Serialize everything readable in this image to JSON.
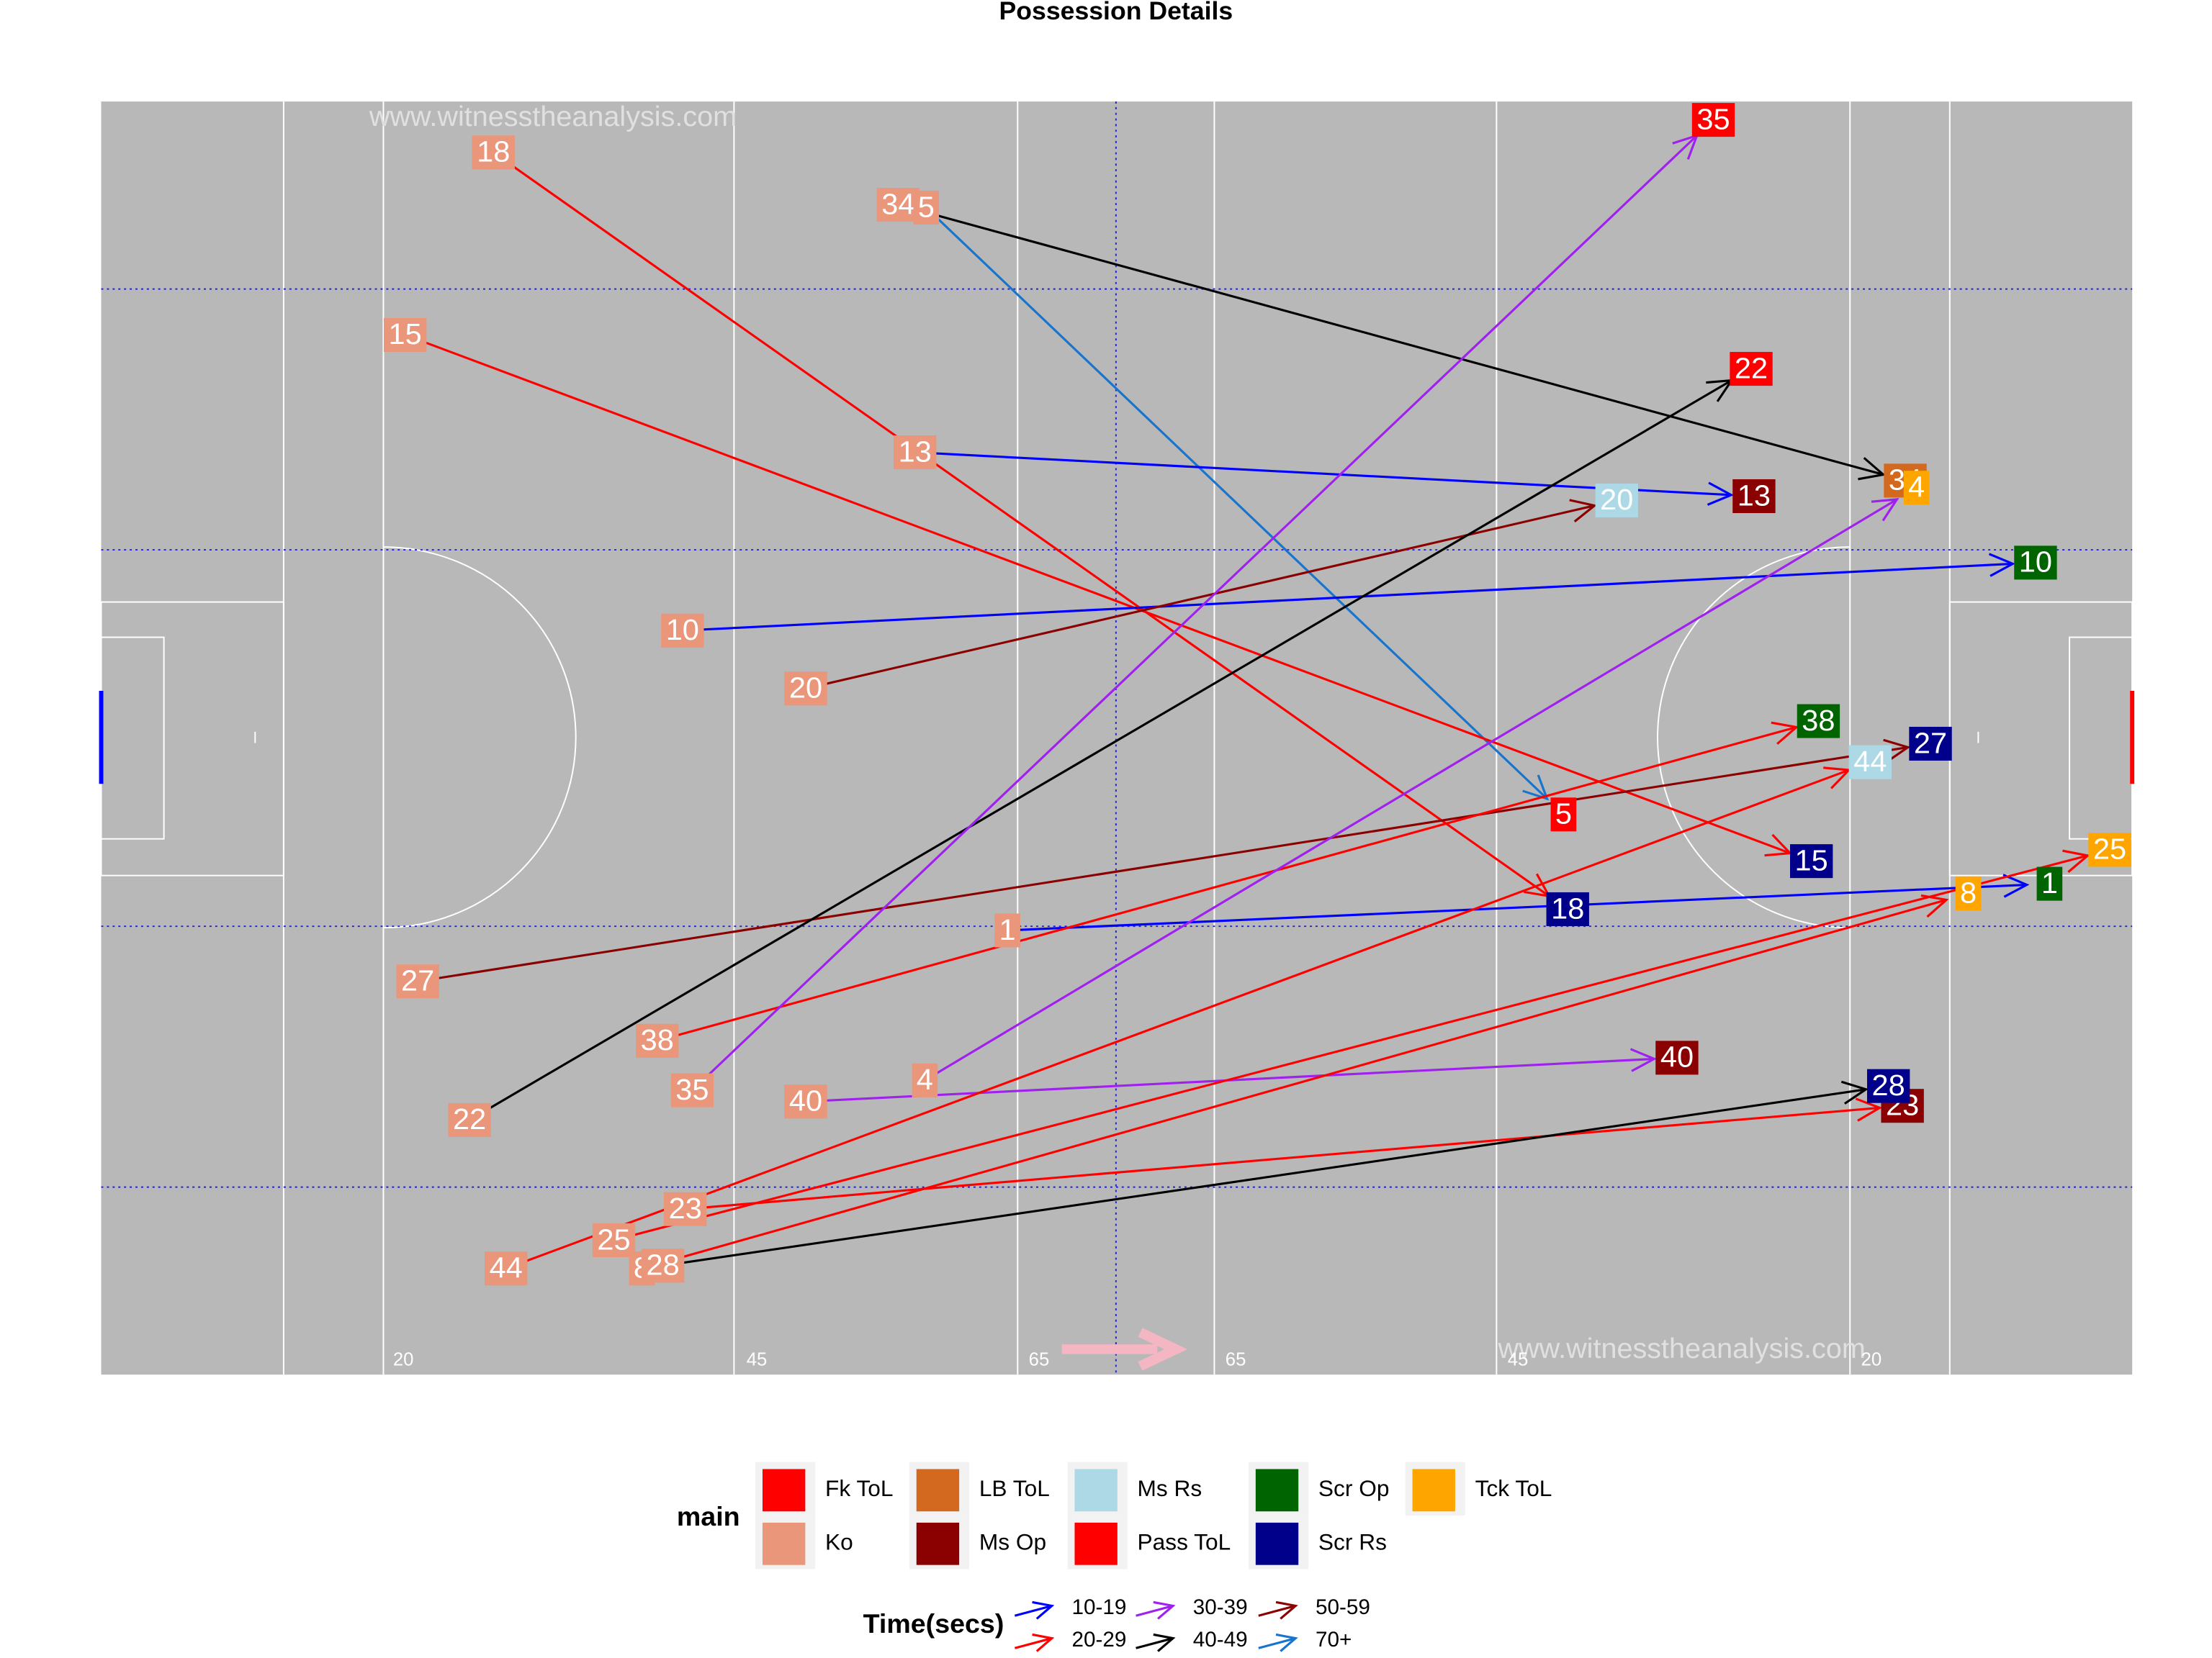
{
  "chart_data": {
    "type": "arrow",
    "title": "Possession Details",
    "watermarks": [
      "www.witnesstheanalysis.com",
      "www.witnesstheanalysis.com"
    ],
    "pitch_labels": [
      "20",
      "45",
      "65",
      "65",
      "45",
      "20"
    ],
    "xlim": [
      0,
      145
    ],
    "ylim": [
      0,
      90
    ],
    "main_legend": {
      "title": "main",
      "items": [
        {
          "name": "Fk ToL",
          "color": "#ff0000"
        },
        {
          "name": "Ko",
          "color": "#e9967a"
        },
        {
          "name": "LB ToL",
          "color": "#d2691e"
        },
        {
          "name": "Ms Op",
          "color": "#8b0000"
        },
        {
          "name": "Ms Rs",
          "color": "#add8e6"
        },
        {
          "name": "Pass ToL",
          "color": "#ff0000"
        },
        {
          "name": "Scr Op",
          "color": "#006400"
        },
        {
          "name": "Scr Rs",
          "color": "#00008b"
        },
        {
          "name": "Tck ToL",
          "color": "#ffa500"
        }
      ]
    },
    "time_legend": {
      "title": "Time(secs)",
      "items": [
        {
          "name": "10-19",
          "color": "#0000ff"
        },
        {
          "name": "20-29",
          "color": "#ff0000"
        },
        {
          "name": "30-39",
          "color": "#a020f0"
        },
        {
          "name": "40-49",
          "color": "#000000"
        },
        {
          "name": "50-59",
          "color": "#8b0000"
        },
        {
          "name": "70+",
          "color": "#1874cd"
        }
      ]
    },
    "events": [
      {
        "label": "18",
        "x0": 28,
        "y0": 3.6,
        "x1": 104.7,
        "y1": 57.1,
        "main": "Scr Rs",
        "time": "20-29"
      },
      {
        "label": "34",
        "x0": 56.9,
        "y0": 7.3,
        "x1": 128.8,
        "y1": 26.8,
        "main": "LB ToL",
        "time": "40-49"
      },
      {
        "label": "5",
        "x0": 58.9,
        "y0": 7.5,
        "x1": 104.4,
        "y1": 50.4,
        "main": "Pass ToL",
        "time": "70+"
      },
      {
        "label": "15",
        "x0": 21.7,
        "y0": 16.5,
        "x1": 122.1,
        "y1": 53.7,
        "main": "Scr Rs",
        "time": "20-29"
      },
      {
        "label": "13",
        "x0": 58.1,
        "y0": 24.8,
        "x1": 118,
        "y1": 27.9,
        "main": "Ms Op",
        "time": "10-19"
      },
      {
        "label": "10",
        "x0": 41.5,
        "y0": 37.4,
        "x1": 138.1,
        "y1": 32.6,
        "main": "Scr Op",
        "time": "10-19"
      },
      {
        "label": "20",
        "x0": 50.3,
        "y0": 41.5,
        "x1": 108.2,
        "y1": 28.2,
        "main": "Ms Rs",
        "time": "50-59"
      },
      {
        "label": "27",
        "x0": 22.6,
        "y0": 62.2,
        "x1": 130.6,
        "y1": 45.4,
        "main": "Scr Rs",
        "time": "50-59"
      },
      {
        "label": "22",
        "x0": 26.3,
        "y0": 72,
        "x1": 117.8,
        "y1": 18.9,
        "main": "Fk ToL",
        "time": "40-49"
      },
      {
        "label": "1",
        "x0": 64.7,
        "y0": 58.6,
        "x1": 139.1,
        "y1": 55.3,
        "main": "Scr Op",
        "time": "10-19"
      },
      {
        "label": "38",
        "x0": 39.7,
        "y0": 66.4,
        "x1": 122.6,
        "y1": 43.8,
        "main": "Scr Op",
        "time": "20-29"
      },
      {
        "label": "35",
        "x0": 42.2,
        "y0": 69.9,
        "x1": 115.1,
        "y1": 1.3,
        "main": "Fk ToL",
        "time": "30-39"
      },
      {
        "label": "4",
        "x0": 58.8,
        "y0": 69.2,
        "x1": 129.6,
        "y1": 27.3,
        "main": "Tck ToL",
        "time": "30-39"
      },
      {
        "label": "40",
        "x0": 50.3,
        "y0": 70.7,
        "x1": 112.5,
        "y1": 67.6,
        "main": "Ms Op",
        "time": "30-39"
      },
      {
        "label": "23",
        "x0": 41.7,
        "y0": 78.3,
        "x1": 128.6,
        "y1": 71,
        "main": "Ms Op",
        "time": "20-29"
      },
      {
        "label": "25",
        "x0": 36.6,
        "y0": 80.5,
        "x1": 143.4,
        "y1": 52.9,
        "main": "Tck ToL",
        "time": "20-29"
      },
      {
        "label": "44",
        "x0": 28.9,
        "y0": 82.5,
        "x1": 126.3,
        "y1": 46.7,
        "main": "Ms Rs",
        "time": "20-29"
      },
      {
        "label": "8",
        "x0": 38.6,
        "y0": 82.5,
        "x1": 133.3,
        "y1": 56,
        "main": "Tck ToL",
        "time": "20-29"
      },
      {
        "label": "28",
        "x0": 40.1,
        "y0": 82.3,
        "x1": 127.6,
        "y1": 69.6,
        "main": "Scr Rs",
        "time": "40-49"
      }
    ]
  }
}
